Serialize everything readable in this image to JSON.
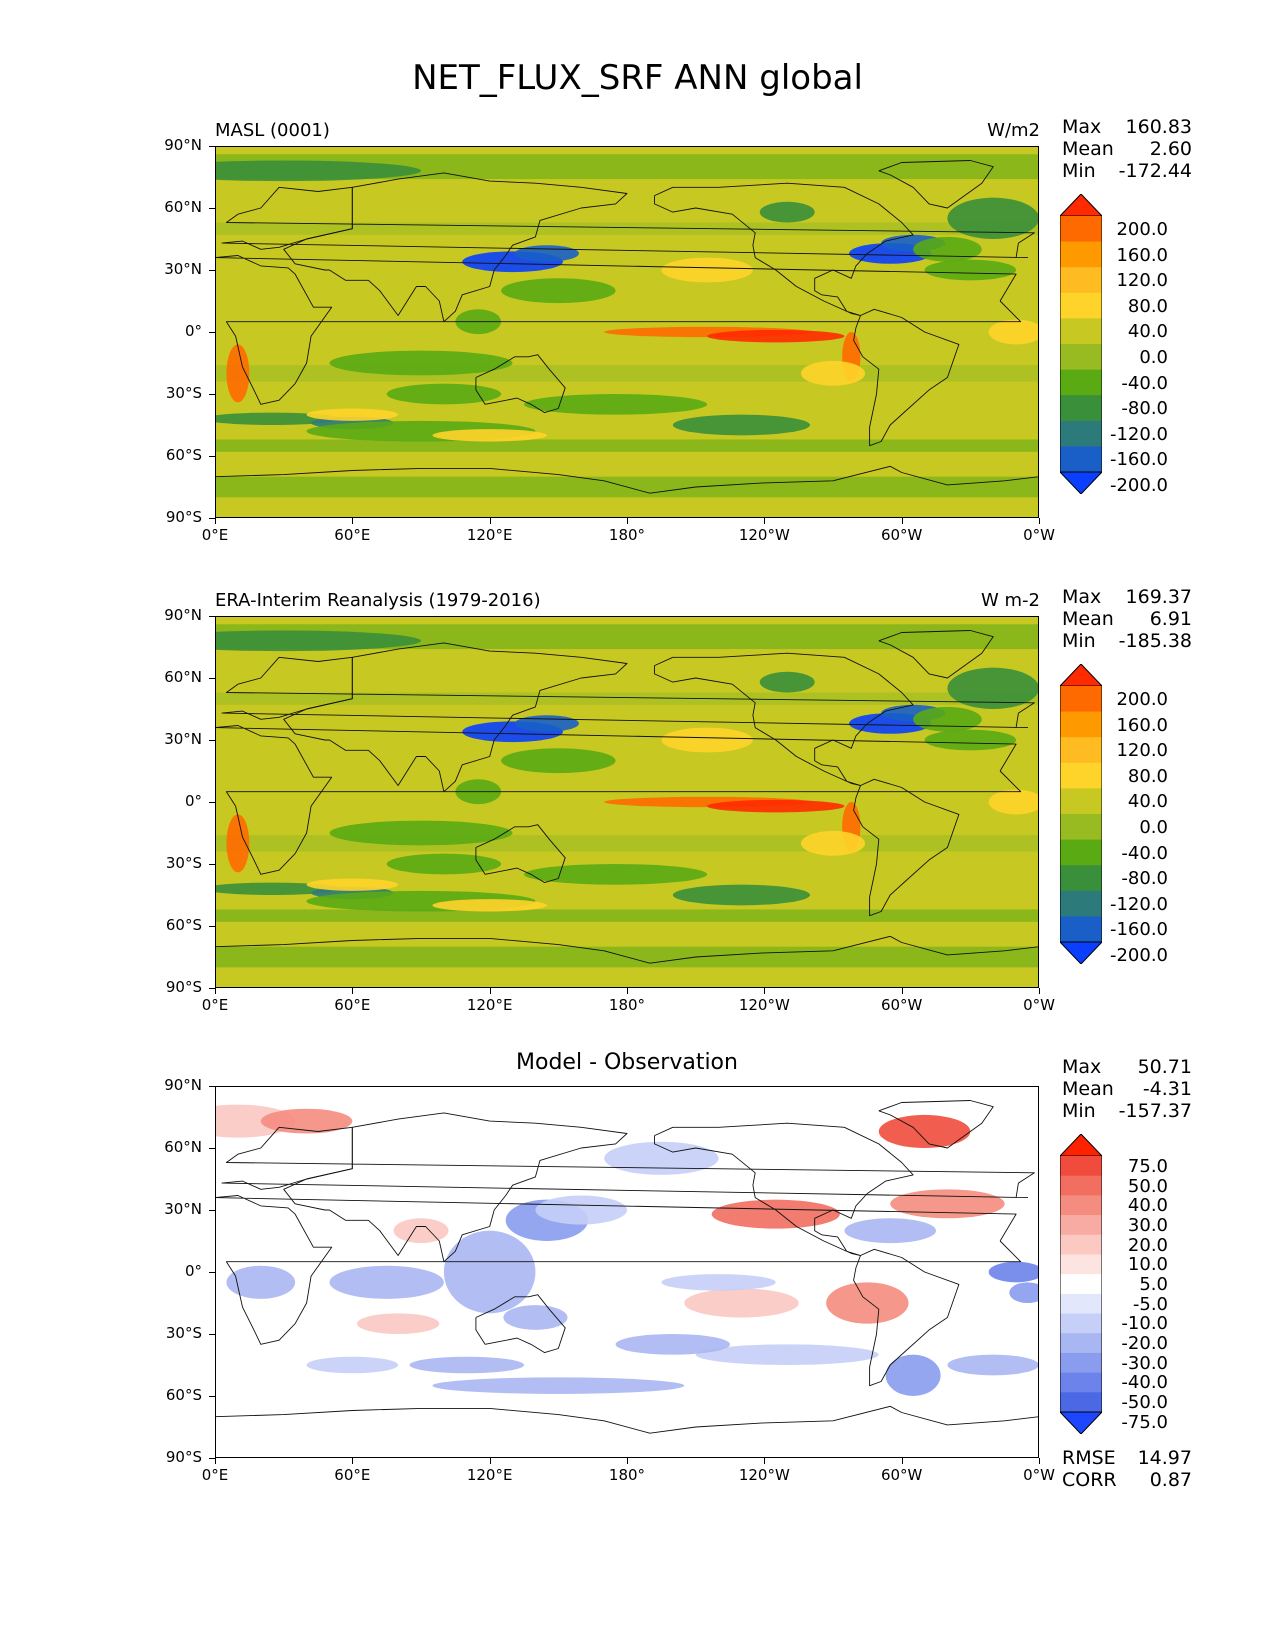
{
  "main_title": "NET_FLUX_SRF ANN global",
  "chart_data": [
    {
      "type": "heatmap",
      "panel": "test",
      "title_left": "MASL (0001)",
      "title_right": "W/m2",
      "title_center": "",
      "variable": "NET_FLUX_SRF",
      "season": "ANN",
      "stats": {
        "max": "160.83",
        "mean": "2.60",
        "min": "-172.44"
      },
      "colorbar": {
        "levels": [
          "200.0",
          "160.0",
          "120.0",
          "80.0",
          "40.0",
          "0.0",
          "-40.0",
          "-80.0",
          "-120.0",
          "-160.0",
          "-200.0"
        ],
        "colors": [
          "#ff2a00",
          "#ff6a00",
          "#ff9900",
          "#ffbb22",
          "#ffd42a",
          "#c8c822",
          "#99bb22",
          "#5aaa14",
          "#3a8f3a",
          "#2d7a7a",
          "#1a5fc8",
          "#0a3fff"
        ]
      },
      "y_ticks": [
        "90°N",
        "60°N",
        "30°N",
        "0°",
        "30°S",
        "60°S",
        "90°S"
      ],
      "x_ticks": [
        "0°E",
        "60°E",
        "120°E",
        "180°",
        "120°W",
        "60°W",
        "0°W"
      ],
      "xlim": [
        0,
        360
      ],
      "ylim": [
        -90,
        90
      ]
    },
    {
      "type": "heatmap",
      "panel": "reference",
      "title_left": "ERA-Interim Reanalysis (1979-2016)",
      "title_right": "W m-2",
      "title_center": "",
      "stats": {
        "max": "169.37",
        "mean": "6.91",
        "min": "-185.38"
      },
      "colorbar": {
        "levels": [
          "200.0",
          "160.0",
          "120.0",
          "80.0",
          "40.0",
          "0.0",
          "-40.0",
          "-80.0",
          "-120.0",
          "-160.0",
          "-200.0"
        ],
        "colors": [
          "#ff2a00",
          "#ff6a00",
          "#ff9900",
          "#ffbb22",
          "#ffd42a",
          "#c8c822",
          "#99bb22",
          "#5aaa14",
          "#3a8f3a",
          "#2d7a7a",
          "#1a5fc8",
          "#0a3fff"
        ]
      },
      "y_ticks": [
        "90°N",
        "60°N",
        "30°N",
        "0°",
        "30°S",
        "60°S",
        "90°S"
      ],
      "x_ticks": [
        "0°E",
        "60°E",
        "120°E",
        "180°",
        "120°W",
        "60°W",
        "0°W"
      ],
      "xlim": [
        0,
        360
      ],
      "ylim": [
        -90,
        90
      ]
    },
    {
      "type": "heatmap",
      "panel": "difference",
      "title_left": "",
      "title_right": "",
      "title_center": "Model - Observation",
      "stats": {
        "max": "50.71",
        "mean": "-4.31",
        "min": "-157.37"
      },
      "fit_stats": {
        "rmse_label": "RMSE",
        "rmse": "14.97",
        "corr_label": "CORR",
        "corr": "0.87"
      },
      "colorbar": {
        "levels": [
          "75.0",
          "50.0",
          "40.0",
          "30.0",
          "20.0",
          "10.0",
          "5.0",
          "-5.0",
          "-10.0",
          "-20.0",
          "-30.0",
          "-40.0",
          "-50.0",
          "-75.0"
        ],
        "colors": [
          "#ff2200",
          "#f04b3c",
          "#f26e60",
          "#f58c80",
          "#f8aba2",
          "#fbc8c2",
          "#fde4e1",
          "#ffffff",
          "#e2e7fb",
          "#c5cff7",
          "#a8b6f2",
          "#8a9cee",
          "#6b83ea",
          "#4b69e5",
          "#1e46ff"
        ]
      },
      "y_ticks": [
        "90°N",
        "60°N",
        "30°N",
        "0°",
        "30°S",
        "60°S",
        "90°S"
      ],
      "x_ticks": [
        "0°E",
        "60°E",
        "120°E",
        "180°",
        "120°W",
        "60°W",
        "0°W"
      ],
      "xlim": [
        0,
        360
      ],
      "ylim": [
        -90,
        90
      ]
    }
  ],
  "stat_labels": {
    "max": "Max",
    "mean": "Mean",
    "min": "Min"
  }
}
